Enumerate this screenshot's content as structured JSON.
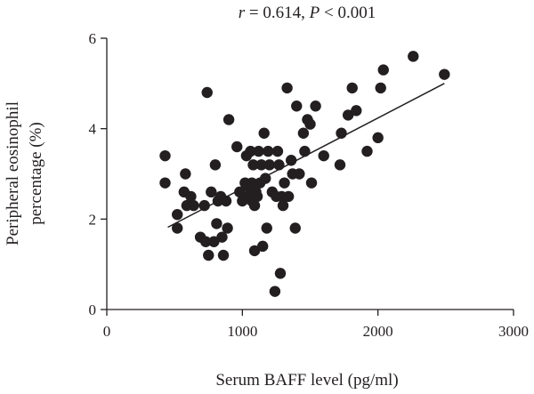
{
  "chart_data": {
    "type": "scatter",
    "annotation": {
      "r_symbol": "r",
      "r_text": " = 0.614, ",
      "p_symbol": "P",
      "p_text": " < 0.001"
    },
    "xlabel": "Serum BAFF level (pg/ml)",
    "ylabel_line1": "Peripheral eosinophil",
    "ylabel_line2": "percentage (%)",
    "xlim": [
      0,
      3000
    ],
    "ylim": [
      0,
      6
    ],
    "x_ticks": [
      0,
      1000,
      2000,
      3000
    ],
    "y_ticks": [
      0,
      2,
      4,
      6
    ],
    "grid": false,
    "legend": "none",
    "marker_color": "#231f20",
    "trendline": {
      "x": [
        450,
        2490
      ],
      "y": [
        1.82,
        5.0
      ]
    },
    "points": [
      {
        "x": 430,
        "y": 3.4
      },
      {
        "x": 430,
        "y": 2.8
      },
      {
        "x": 520,
        "y": 1.8
      },
      {
        "x": 520,
        "y": 2.1
      },
      {
        "x": 570,
        "y": 2.6
      },
      {
        "x": 580,
        "y": 3.0
      },
      {
        "x": 590,
        "y": 2.3
      },
      {
        "x": 620,
        "y": 2.5
      },
      {
        "x": 640,
        "y": 2.3
      },
      {
        "x": 690,
        "y": 1.6
      },
      {
        "x": 720,
        "y": 2.3
      },
      {
        "x": 730,
        "y": 1.5
      },
      {
        "x": 740,
        "y": 4.8
      },
      {
        "x": 750,
        "y": 1.2
      },
      {
        "x": 770,
        "y": 2.6
      },
      {
        "x": 790,
        "y": 1.5
      },
      {
        "x": 800,
        "y": 3.2
      },
      {
        "x": 810,
        "y": 1.9
      },
      {
        "x": 820,
        "y": 2.4
      },
      {
        "x": 840,
        "y": 2.5
      },
      {
        "x": 850,
        "y": 1.6
      },
      {
        "x": 860,
        "y": 1.2
      },
      {
        "x": 880,
        "y": 2.4
      },
      {
        "x": 890,
        "y": 1.8
      },
      {
        "x": 900,
        "y": 4.2
      },
      {
        "x": 960,
        "y": 3.6
      },
      {
        "x": 980,
        "y": 2.6
      },
      {
        "x": 1000,
        "y": 2.4
      },
      {
        "x": 1020,
        "y": 2.8
      },
      {
        "x": 1030,
        "y": 3.4
      },
      {
        "x": 1040,
        "y": 2.5
      },
      {
        "x": 1050,
        "y": 2.7
      },
      {
        "x": 1060,
        "y": 3.5
      },
      {
        "x": 1070,
        "y": 2.8
      },
      {
        "x": 1070,
        "y": 2.4
      },
      {
        "x": 1080,
        "y": 3.2
      },
      {
        "x": 1090,
        "y": 2.3
      },
      {
        "x": 1090,
        "y": 1.3
      },
      {
        "x": 1100,
        "y": 2.6
      },
      {
        "x": 1110,
        "y": 2.5
      },
      {
        "x": 1120,
        "y": 3.5
      },
      {
        "x": 1130,
        "y": 2.8
      },
      {
        "x": 1140,
        "y": 3.2
      },
      {
        "x": 1150,
        "y": 1.4
      },
      {
        "x": 1160,
        "y": 3.9
      },
      {
        "x": 1170,
        "y": 2.9
      },
      {
        "x": 1180,
        "y": 1.8
      },
      {
        "x": 1190,
        "y": 3.5
      },
      {
        "x": 1200,
        "y": 3.2
      },
      {
        "x": 1220,
        "y": 2.6
      },
      {
        "x": 1240,
        "y": 0.4
      },
      {
        "x": 1250,
        "y": 2.5
      },
      {
        "x": 1260,
        "y": 3.5
      },
      {
        "x": 1270,
        "y": 3.2
      },
      {
        "x": 1280,
        "y": 0.8
      },
      {
        "x": 1290,
        "y": 2.5
      },
      {
        "x": 1300,
        "y": 2.3
      },
      {
        "x": 1310,
        "y": 2.8
      },
      {
        "x": 1330,
        "y": 4.9
      },
      {
        "x": 1340,
        "y": 2.5
      },
      {
        "x": 1360,
        "y": 3.3
      },
      {
        "x": 1370,
        "y": 3.0
      },
      {
        "x": 1390,
        "y": 1.8
      },
      {
        "x": 1400,
        "y": 4.5
      },
      {
        "x": 1420,
        "y": 3.0
      },
      {
        "x": 1450,
        "y": 3.9
      },
      {
        "x": 1460,
        "y": 3.5
      },
      {
        "x": 1480,
        "y": 4.2
      },
      {
        "x": 1500,
        "y": 4.1
      },
      {
        "x": 1510,
        "y": 2.8
      },
      {
        "x": 1540,
        "y": 4.5
      },
      {
        "x": 1600,
        "y": 3.4
      },
      {
        "x": 1720,
        "y": 3.2
      },
      {
        "x": 1730,
        "y": 3.9
      },
      {
        "x": 1780,
        "y": 4.3
      },
      {
        "x": 1810,
        "y": 4.9
      },
      {
        "x": 1840,
        "y": 4.4
      },
      {
        "x": 1920,
        "y": 3.5
      },
      {
        "x": 2000,
        "y": 3.8
      },
      {
        "x": 2020,
        "y": 4.9
      },
      {
        "x": 2040,
        "y": 5.3
      },
      {
        "x": 2260,
        "y": 5.6
      },
      {
        "x": 2490,
        "y": 5.2
      }
    ]
  }
}
